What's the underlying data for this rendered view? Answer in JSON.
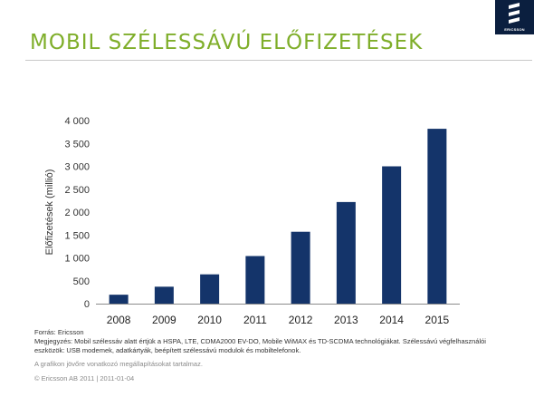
{
  "header": {
    "title": "MOBIL SZÉLESSÁVÚ ELŐFIZETÉSEK",
    "logo_text": "ERICSSON"
  },
  "chart_data": {
    "type": "bar",
    "categories": [
      "2008",
      "2009",
      "2010",
      "2011",
      "2012",
      "2013",
      "2014",
      "2015"
    ],
    "values": [
      195,
      370,
      640,
      1040,
      1570,
      2220,
      3000,
      3820
    ],
    "ylabel": "Előfizetések (millió)",
    "xlabel": "",
    "ylim": [
      0,
      4000
    ],
    "yticks": [
      0,
      500,
      1000,
      1500,
      2000,
      2500,
      3000,
      3500,
      4000
    ],
    "ytick_labels": [
      "0",
      "500",
      "1 000",
      "1 500",
      "2 000",
      "2 500",
      "3 000",
      "3 500",
      "4 000"
    ],
    "bar_color": "#14346a",
    "grid": false,
    "legend": "none"
  },
  "footer": {
    "source": "Forrás: Ericsson",
    "note_line1": "Megjegyzés: Mobil szélessáv alatt értjük a HSPA, LTE, CDMA2000 EV-DO, Mobile WiMAX és TD-SCDMA technológiákat. Szélessávú végfelhasználói",
    "note_line2": "eszközök: USB modemek, adatkártyák, beépített szélessávú modulok és mobiltelefonok.",
    "disclaimer": "A grafikon jövőre vonatkozó megállapításokat tartalmaz.",
    "copyright": "© Ericsson AB 2011  |  2011-01-04"
  }
}
